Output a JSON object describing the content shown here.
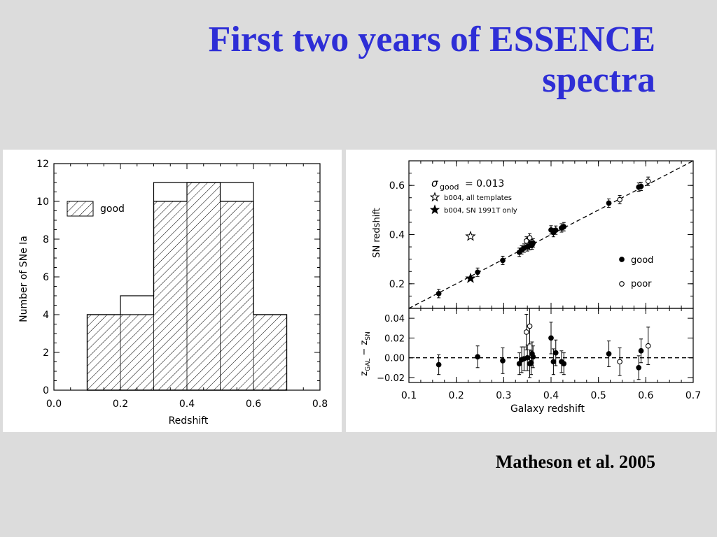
{
  "slide": {
    "title_line1": "First two years of ESSENCE",
    "title_line2": "spectra",
    "citation": "Matheson et al. 2005",
    "title_color": "#2e2ed6",
    "background_color": "#dcdcdc"
  },
  "chart_data": [
    {
      "type": "bar",
      "subtype": "histogram",
      "title": "",
      "xlabel": "Redshift",
      "ylabel": "Number of SNe Ia",
      "xlim": [
        0.0,
        0.8
      ],
      "ylim": [
        0,
        12
      ],
      "xticks": [
        0.0,
        0.2,
        0.4,
        0.6,
        0.8
      ],
      "xtick_labels": [
        "0.0",
        "0.2",
        "0.4",
        "0.6",
        "0.8"
      ],
      "yticks": [
        0,
        2,
        4,
        6,
        8,
        10,
        12
      ],
      "ytick_labels": [
        "0",
        "2",
        "4",
        "6",
        "8",
        "10",
        "12"
      ],
      "bin_edges": [
        0.1,
        0.2,
        0.3,
        0.4,
        0.5,
        0.6,
        0.7
      ],
      "series": [
        {
          "name": "all",
          "fill": "none",
          "values": [
            4,
            5,
            11,
            11,
            11,
            4
          ]
        },
        {
          "name": "good",
          "fill": "hatched",
          "values": [
            4,
            4,
            10,
            11,
            10,
            4
          ]
        }
      ],
      "legend": {
        "placement": "top-left",
        "entries": [
          "good"
        ]
      }
    },
    {
      "type": "scatter",
      "subtype": "two-panel",
      "title": "",
      "xlabel": "Galaxy redshift",
      "xlim": [
        0.1,
        0.7
      ],
      "xticks": [
        0.1,
        0.2,
        0.3,
        0.4,
        0.5,
        0.6,
        0.7
      ],
      "xtick_labels": [
        "0.1",
        "0.2",
        "0.3",
        "0.4",
        "0.5",
        "0.6",
        "0.7"
      ],
      "top": {
        "ylabel": "SN redshift",
        "ylim": [
          0.1,
          0.7
        ],
        "yticks": [
          0.2,
          0.4,
          0.6
        ],
        "ytick_labels": [
          "0.2",
          "0.4",
          "0.6"
        ],
        "annotation": {
          "symbol": "σ",
          "subscript": "good",
          "text": "= 0.013"
        },
        "reference_line": "y = x (dashed)",
        "series": [
          {
            "name": "good",
            "marker": "filled-circle",
            "points": [
              [
                0.163,
                0.16
              ],
              [
                0.245,
                0.247
              ],
              [
                0.298,
                0.295
              ],
              [
                0.333,
                0.328
              ],
              [
                0.338,
                0.338
              ],
              [
                0.343,
                0.345
              ],
              [
                0.35,
                0.35
              ],
              [
                0.355,
                0.355
              ],
              [
                0.358,
                0.363
              ],
              [
                0.36,
                0.357
              ],
              [
                0.362,
                0.366
              ],
              [
                0.4,
                0.419
              ],
              [
                0.405,
                0.408
              ],
              [
                0.41,
                0.418
              ],
              [
                0.422,
                0.427
              ],
              [
                0.427,
                0.432
              ],
              [
                0.522,
                0.528
              ],
              [
                0.585,
                0.593
              ],
              [
                0.59,
                0.596
              ]
            ]
          },
          {
            "name": "poor",
            "marker": "open-circle",
            "points": [
              [
                0.348,
                0.374
              ],
              [
                0.355,
                0.387
              ],
              [
                0.545,
                0.542
              ],
              [
                0.605,
                0.617
              ]
            ]
          },
          {
            "name": "b004, all templates",
            "marker": "open-star",
            "points": [
              [
                0.23,
                0.393
              ]
            ]
          },
          {
            "name": "b004, SN 1991T only",
            "marker": "filled-star",
            "points": [
              [
                0.23,
                0.222
              ]
            ]
          }
        ],
        "legend": {
          "placement": "top-left and bottom-right",
          "entries": [
            "b004, all templates",
            "b004, SN 1991T only",
            "good",
            "poor"
          ]
        }
      },
      "bottom": {
        "ylabel_main": "z",
        "ylabel_sub1": "GAL",
        "ylabel_mid": " − z",
        "ylabel_sub2": "SN",
        "ylim": [
          -0.025,
          0.05
        ],
        "yticks": [
          -0.02,
          0.0,
          0.02,
          0.04
        ],
        "ytick_labels": [
          "−0.02",
          "0.00",
          "0.02",
          "0.04"
        ],
        "reference_line": "y = 0 (dashed)",
        "series": [
          {
            "name": "good",
            "marker": "filled-circle",
            "points": [
              [
                0.163,
                -0.007,
                0.01
              ],
              [
                0.245,
                0.001,
                0.011
              ],
              [
                0.298,
                -0.003,
                0.013
              ],
              [
                0.333,
                -0.006,
                0.011
              ],
              [
                0.338,
                -0.002,
                0.013
              ],
              [
                0.343,
                -0.001,
                0.012
              ],
              [
                0.35,
                0.0,
                0.013
              ],
              [
                0.355,
                -0.006,
                0.014
              ],
              [
                0.358,
                -0.005,
                0.012
              ],
              [
                0.36,
                0.004,
                0.012
              ],
              [
                0.362,
                0.001,
                0.011
              ],
              [
                0.4,
                0.02,
                0.016
              ],
              [
                0.405,
                -0.004,
                0.013
              ],
              [
                0.41,
                0.005,
                0.013
              ],
              [
                0.422,
                -0.004,
                0.011
              ],
              [
                0.427,
                -0.006,
                0.011
              ],
              [
                0.522,
                0.004,
                0.013
              ],
              [
                0.585,
                -0.01,
                0.012
              ],
              [
                0.59,
                0.007,
                0.012
              ]
            ]
          },
          {
            "name": "poor",
            "marker": "open-circle",
            "points": [
              [
                0.348,
                0.026,
                0.018
              ],
              [
                0.355,
                0.032,
                0.018
              ],
              [
                0.545,
                -0.004,
                0.014
              ],
              [
                0.605,
                0.012,
                0.019
              ]
            ]
          }
        ]
      }
    }
  ]
}
